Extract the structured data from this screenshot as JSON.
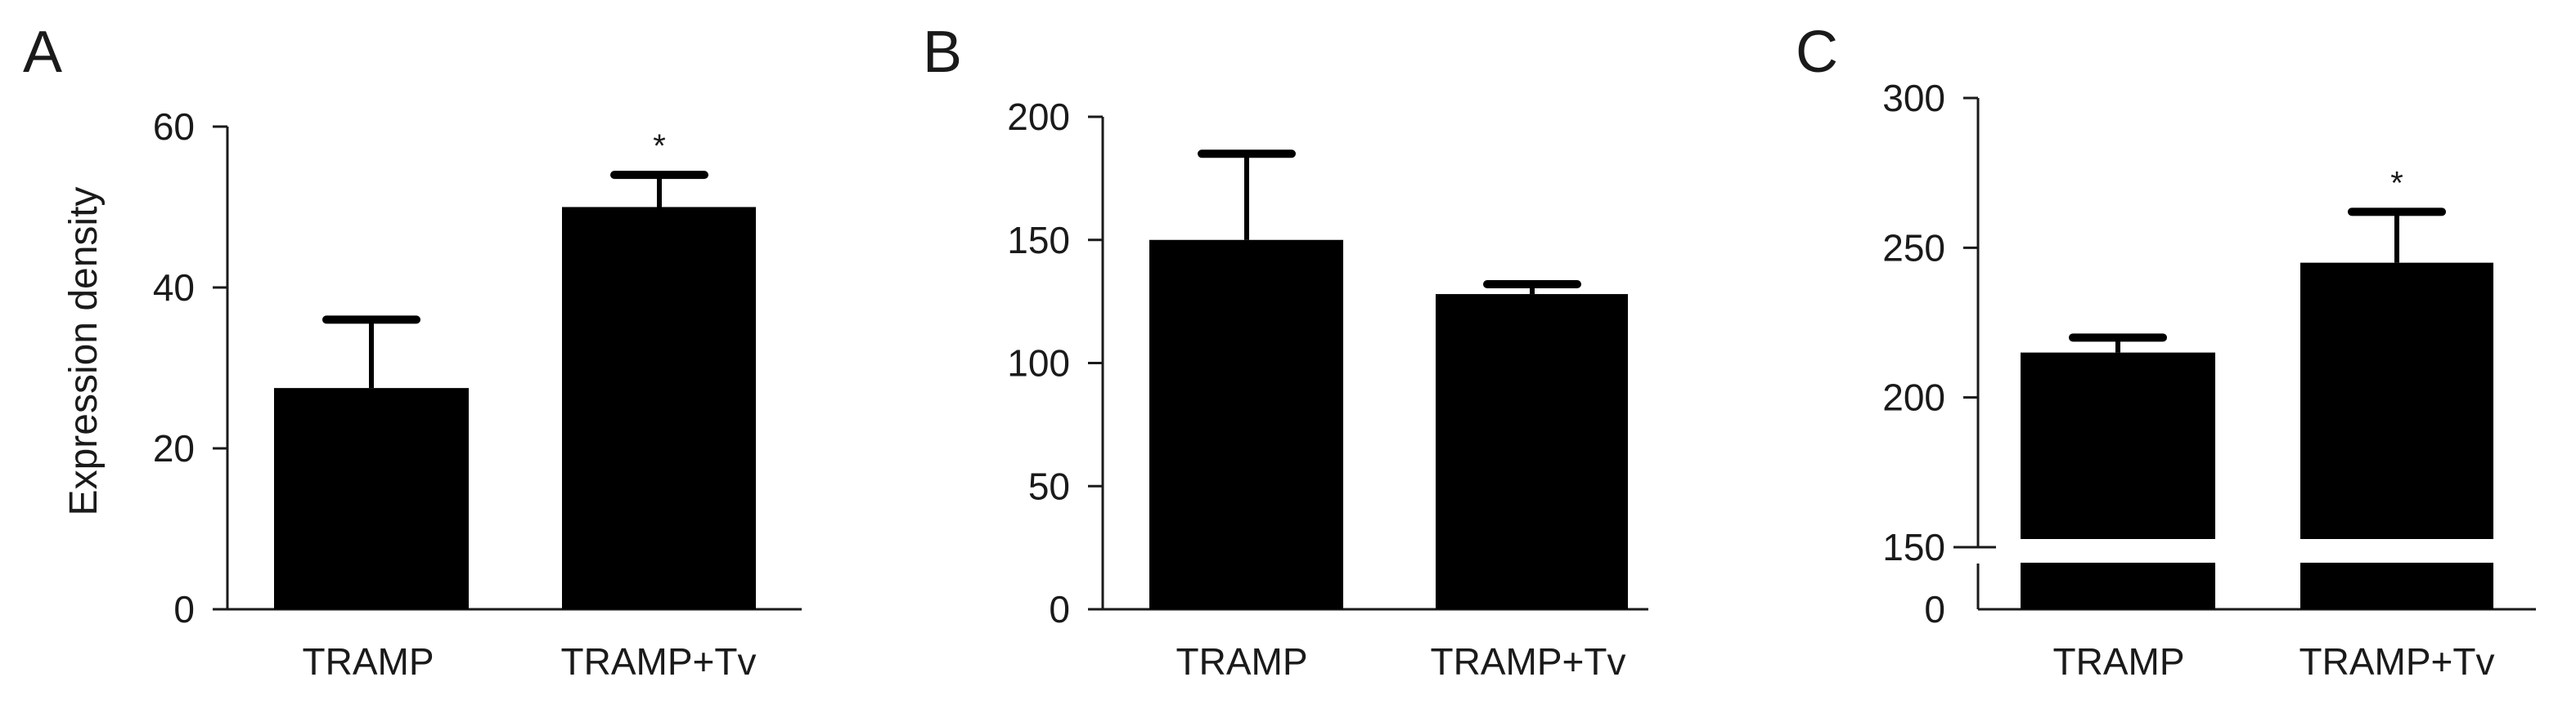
{
  "chart_data": [
    {
      "type": "bar",
      "panel": "A",
      "ylabel": "Expression density",
      "xlabel": "",
      "categories": [
        "TRAMP",
        "TRAMP+Tv"
      ],
      "values": [
        27.5,
        50
      ],
      "errors": [
        8.5,
        4
      ],
      "significance": [
        "",
        "*"
      ],
      "ylim": [
        0,
        60
      ],
      "yticks": [
        0,
        20,
        40,
        60
      ],
      "ytick_labels": [
        "0",
        "20",
        "40",
        "60"
      ]
    },
    {
      "type": "bar",
      "panel": "B",
      "ylabel": "",
      "xlabel": "",
      "categories": [
        "TRAMP",
        "TRAMP+Tv"
      ],
      "values": [
        150,
        128
      ],
      "errors": [
        35,
        4
      ],
      "significance": [
        "",
        ""
      ],
      "ylim": [
        0,
        200
      ],
      "yticks": [
        0,
        50,
        100,
        150,
        200
      ],
      "ytick_labels": [
        "0",
        "50",
        "100",
        "150",
        "200"
      ]
    },
    {
      "type": "bar",
      "panel": "C",
      "ylabel": "",
      "xlabel": "",
      "categories": [
        "TRAMP",
        "TRAMP+Tv"
      ],
      "values": [
        215,
        245
      ],
      "errors": [
        5,
        17
      ],
      "significance": [
        "",
        "*"
      ],
      "ylim": [
        0,
        300
      ],
      "axis_break": [
        0,
        150
      ],
      "yticks": [
        0,
        150,
        200,
        250,
        300
      ],
      "ytick_labels": [
        "0",
        "150",
        "200",
        "250",
        "300"
      ]
    }
  ]
}
